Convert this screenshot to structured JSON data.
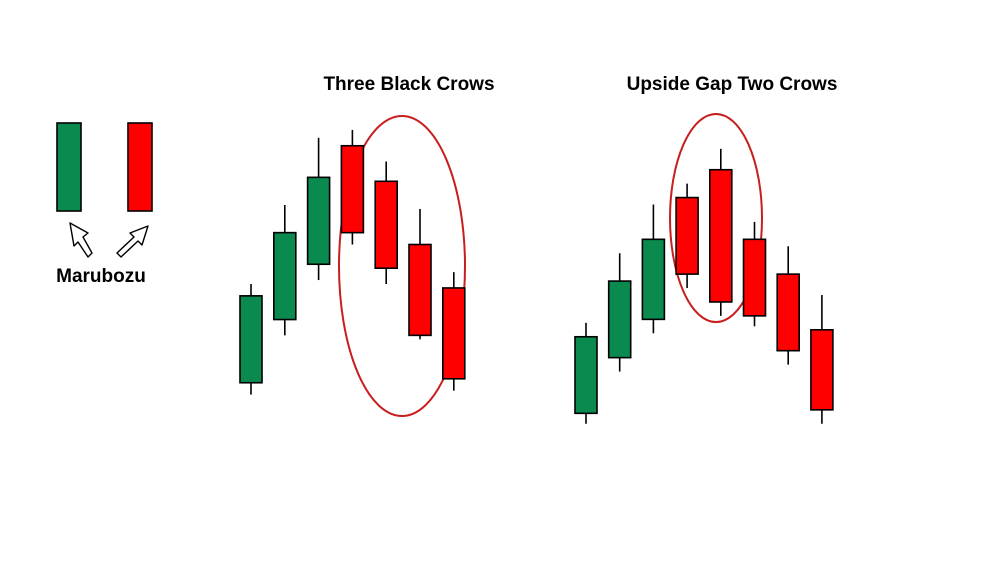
{
  "colors": {
    "bullish": "#0a8a4f",
    "bearish": "#ff0000",
    "outline": "#000000",
    "highlight_ellipse": "#c81e1e",
    "background": "#ffffff"
  },
  "marubozu": {
    "label": "Marubozu",
    "candles": [
      {
        "color": "bullish",
        "open": 0,
        "close": 1,
        "high": 1,
        "low": 0
      },
      {
        "color": "bearish",
        "open": 1,
        "close": 0,
        "high": 1,
        "low": 0
      }
    ],
    "arrows": [
      "arrow-up-left",
      "arrow-up-right"
    ]
  },
  "patterns": [
    {
      "title": "Three Black Crows",
      "candles": [
        {
          "color": "bullish",
          "open": 1.5,
          "close": 3.7,
          "high": 4.0,
          "low": 1.2
        },
        {
          "color": "bullish",
          "open": 3.1,
          "close": 5.3,
          "high": 6.0,
          "low": 2.7
        },
        {
          "color": "bullish",
          "open": 4.5,
          "close": 6.7,
          "high": 7.7,
          "low": 4.1
        },
        {
          "color": "bearish",
          "open": 7.5,
          "close": 5.3,
          "high": 7.9,
          "low": 5.0
        },
        {
          "color": "bearish",
          "open": 6.6,
          "close": 4.4,
          "high": 7.1,
          "low": 4.0
        },
        {
          "color": "bearish",
          "open": 5.0,
          "close": 2.7,
          "high": 5.9,
          "low": 2.6
        },
        {
          "color": "bearish",
          "open": 3.9,
          "close": 1.6,
          "high": 4.3,
          "low": 1.3
        }
      ],
      "highlight": [
        3,
        5
      ]
    },
    {
      "title": "Upside Gap Two Crows",
      "candles": [
        {
          "color": "bullish",
          "open": 1.6,
          "close": 3.8,
          "high": 4.2,
          "low": 1.3
        },
        {
          "color": "bullish",
          "open": 3.2,
          "close": 5.4,
          "high": 6.2,
          "low": 2.8
        },
        {
          "color": "bullish",
          "open": 4.3,
          "close": 6.6,
          "high": 7.6,
          "low": 3.9
        },
        {
          "color": "bearish",
          "open": 7.8,
          "close": 5.6,
          "high": 8.2,
          "low": 5.2
        },
        {
          "color": "bearish",
          "open": 8.6,
          "close": 4.8,
          "high": 9.2,
          "low": 4.4
        },
        {
          "color": "bearish",
          "open": 6.6,
          "close": 4.4,
          "high": 7.1,
          "low": 4.1
        },
        {
          "color": "bearish",
          "open": 5.6,
          "close": 3.4,
          "high": 6.4,
          "low": 3.0
        },
        {
          "color": "bearish",
          "open": 4.0,
          "close": 1.7,
          "high": 5.0,
          "low": 1.3
        }
      ],
      "highlight": [
        3,
        4
      ]
    }
  ]
}
